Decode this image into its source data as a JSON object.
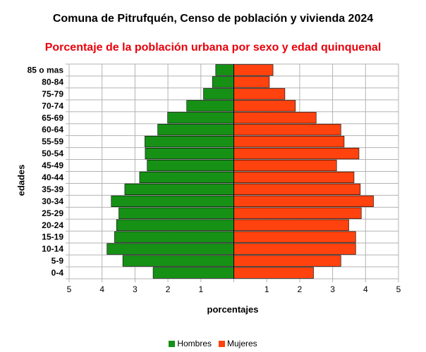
{
  "colors": {
    "hombres": "#169116",
    "mujeres": "#ff420e",
    "grid": "#b3b3b3",
    "subtitle": "#e8000b"
  },
  "chart_data": {
    "type": "bar",
    "orientation": "horizontal",
    "layout": "population-pyramid",
    "title": "Comuna de Pitrufquén, Censo de población y vivienda 2024",
    "subtitle": "Porcentaje de la población urbana por sexo y edad quinquenal",
    "xlabel": "porcentajes",
    "ylabel": "edades",
    "xlim": [
      -5,
      5
    ],
    "x_ticks": [
      "5",
      "4",
      "3",
      "2",
      "1",
      "",
      "1",
      "2",
      "3",
      "4",
      "5"
    ],
    "grid": true,
    "legend_position": "bottom",
    "categories": [
      "85 o mas",
      "80-84",
      "75-79",
      "70-74",
      "65-69",
      "60-64",
      "55-59",
      "50-54",
      "45-49",
      "40-44",
      "35-39",
      "30-34",
      "25-29",
      "20-24",
      "15-19",
      "10-14",
      "5-9",
      "0-4"
    ],
    "series": [
      {
        "name": "Hombres",
        "values": [
          0.55,
          0.65,
          0.92,
          1.43,
          2.01,
          2.31,
          2.7,
          2.69,
          2.63,
          2.86,
          3.31,
          3.72,
          3.49,
          3.56,
          3.62,
          3.85,
          3.37,
          2.45
        ]
      },
      {
        "name": "Mujeres",
        "values": [
          1.19,
          1.08,
          1.55,
          1.87,
          2.5,
          3.25,
          3.35,
          3.8,
          3.12,
          3.65,
          3.84,
          4.24,
          3.87,
          3.49,
          3.7,
          3.7,
          3.25,
          2.42
        ]
      }
    ]
  }
}
